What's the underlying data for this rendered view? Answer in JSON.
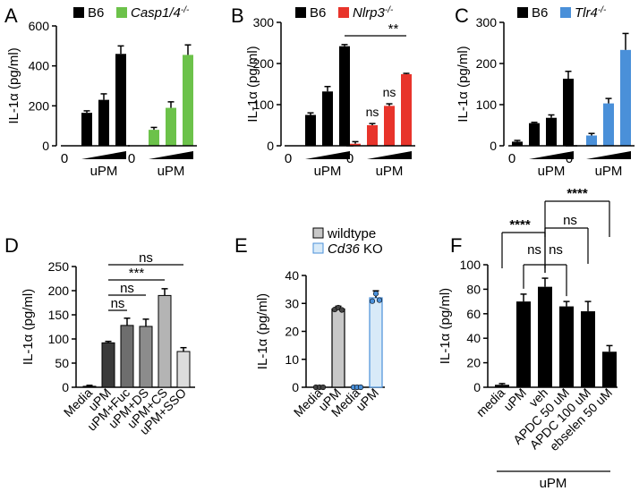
{
  "colors": {
    "black": "#000000",
    "green": "#6cc24a",
    "red": "#e8342b",
    "blue": "#4a90d9",
    "gray": "#c8c8c8",
    "lightblue": "#d8eaf8",
    "lightgray": "#e0e0e0"
  },
  "chart_data": [
    {
      "panel": "A",
      "type": "bar",
      "ylabel": "IL-1α (pg/ml)",
      "ylim": [
        0,
        600
      ],
      "yticks": [
        0,
        200,
        400,
        600
      ],
      "legend": [
        {
          "label": "B6",
          "color": "#000000"
        },
        {
          "label": "Casp1/4",
          "sup": "-/-",
          "color": "#6cc24a",
          "italic": true
        }
      ],
      "groups": [
        {
          "color": "#000000",
          "values": [
            0,
            165,
            230,
            460
          ],
          "errors": [
            0,
            10,
            30,
            40
          ],
          "zero_label": "0",
          "dose_label": "uPM"
        },
        {
          "color": "#6cc24a",
          "values": [
            0,
            80,
            190,
            455
          ],
          "errors": [
            0,
            12,
            30,
            50
          ],
          "zero_label": "0",
          "dose_label": "uPM"
        }
      ]
    },
    {
      "panel": "B",
      "type": "bar",
      "ylabel": "IL-1α (pg/ml)",
      "ylim": [
        0,
        300
      ],
      "yticks": [
        0,
        100,
        200,
        300
      ],
      "legend": [
        {
          "label": "B6",
          "color": "#000000"
        },
        {
          "label": "Nlrp3",
          "sup": "-/-",
          "color": "#e8342b",
          "italic": true
        }
      ],
      "groups": [
        {
          "color": "#000000",
          "values": [
            0,
            75,
            132,
            242
          ],
          "errors": [
            0,
            5,
            12,
            4
          ],
          "zero_label": "0",
          "dose_label": "uPM"
        },
        {
          "color": "#e8342b",
          "values": [
            5,
            50,
            97,
            174
          ],
          "errors": [
            5,
            4,
            5,
            2
          ],
          "zero_label": "0",
          "dose_label": "uPM"
        }
      ],
      "annotations": [
        {
          "text": "**",
          "from": [
            0,
            3
          ],
          "to": [
            1,
            3
          ]
        },
        {
          "text": "ns",
          "at": [
            1,
            1
          ]
        },
        {
          "text": "ns",
          "at": [
            1,
            2
          ]
        }
      ]
    },
    {
      "panel": "C",
      "type": "bar",
      "ylabel": "IL-1α (pg/ml)",
      "ylim": [
        0,
        300
      ],
      "yticks": [
        0,
        100,
        200,
        300
      ],
      "legend": [
        {
          "label": "B6",
          "color": "#000000"
        },
        {
          "label": "Tlr4",
          "sup": "-/-",
          "color": "#4a90d9",
          "italic": true
        }
      ],
      "groups": [
        {
          "color": "#000000",
          "values": [
            10,
            55,
            68,
            163
          ],
          "errors": [
            3,
            2,
            7,
            18
          ],
          "zero_label": "0",
          "dose_label": "uPM"
        },
        {
          "color": "#4a90d9",
          "values": [
            0,
            25,
            103,
            233
          ],
          "errors": [
            0,
            5,
            12,
            40
          ],
          "zero_label": "0",
          "dose_label": "uPM"
        }
      ]
    },
    {
      "panel": "D",
      "type": "bar",
      "ylabel": "IL-1α (pg/ml)",
      "ylim": [
        0,
        250
      ],
      "yticks": [
        0,
        50,
        100,
        150,
        200,
        250
      ],
      "categories": [
        "Media",
        "uPM",
        "uPM+Fuc",
        "uPM+DS",
        "uPM+CS",
        "uPM+SSO"
      ],
      "values": [
        2,
        92,
        128,
        126,
        190,
        74
      ],
      "errors": [
        2,
        3,
        15,
        15,
        14,
        8
      ],
      "colors": [
        "#000000",
        "#3a3a3a",
        "#6e6e6e",
        "#8c8c8c",
        "#b4b4b4",
        "#dcdcdc"
      ],
      "annotations": [
        {
          "text": "ns",
          "from": 1,
          "to": 5
        },
        {
          "text": "***",
          "from": 1,
          "to": 4
        },
        {
          "text": "ns",
          "from": 1,
          "to": 3
        },
        {
          "text": "ns",
          "from": 1,
          "to": 2
        }
      ]
    },
    {
      "panel": "E",
      "type": "bar",
      "ylabel": "IL-1α (pg/ml)",
      "ylim": [
        0,
        40
      ],
      "yticks": [
        0,
        10,
        20,
        30,
        40
      ],
      "categories": [
        "Media",
        "uPM",
        "Media",
        "uPM"
      ],
      "values": [
        0,
        28,
        0,
        32
      ],
      "errors": [
        0,
        1,
        0,
        2.5
      ],
      "fills": [
        "#c8c8c8",
        "#c8c8c8",
        "#d8eaf8",
        "#d8eaf8"
      ],
      "edges": [
        "#000000",
        "#000000",
        "#4a90d9",
        "#4a90d9"
      ],
      "points": [
        [
          0,
          0,
          0
        ],
        [
          27.5,
          28.5,
          28
        ],
        [
          0,
          0,
          0
        ],
        [
          30.5,
          33.5,
          31.5
        ]
      ],
      "legend": [
        {
          "label": "wildtype",
          "color": "#c8c8c8"
        },
        {
          "label": "Cd36 KO",
          "color": "#d8eaf8",
          "italic_part": "Cd36",
          "rest": " KO"
        }
      ]
    },
    {
      "panel": "F",
      "type": "bar",
      "ylabel": "IL-1α (pg/ml)",
      "ylim": [
        0,
        100
      ],
      "yticks": [
        0,
        20,
        40,
        60,
        80,
        100
      ],
      "categories": [
        "media",
        "uPM",
        "veh",
        "APDC 50 uM",
        "APDC 100 uM",
        "ebselen 50 uM"
      ],
      "values": [
        2,
        70,
        82,
        66,
        62,
        29
      ],
      "errors": [
        1,
        6,
        7,
        4,
        8,
        5
      ],
      "group_label": "uPM",
      "annotations": [
        {
          "text": "****",
          "from": 0,
          "to": 2
        },
        {
          "text": "ns",
          "from": 1,
          "to": 2
        },
        {
          "text": "ns",
          "from": 2,
          "to": 3
        },
        {
          "text": "ns",
          "from": 2,
          "to": 4
        },
        {
          "text": "****",
          "from": 2,
          "to": 5
        }
      ]
    }
  ]
}
